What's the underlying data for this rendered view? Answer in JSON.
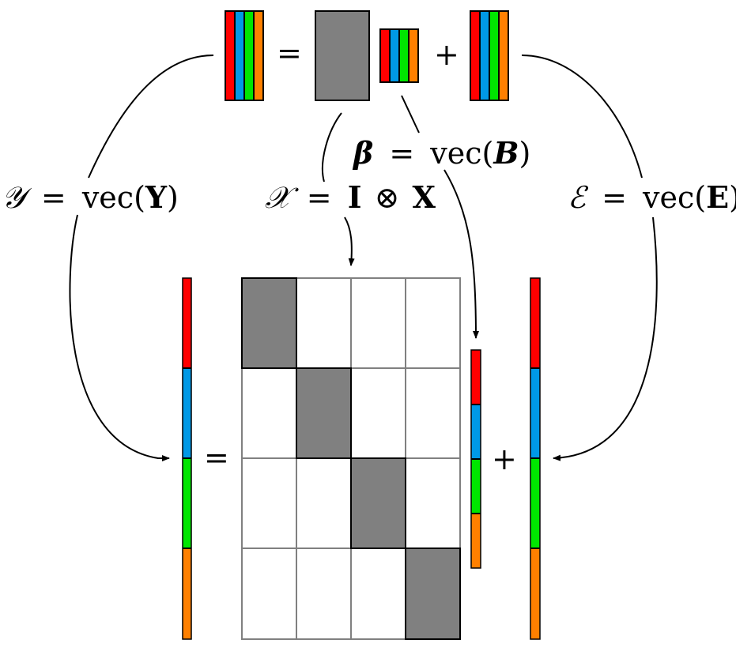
{
  "colors": {
    "red": "#ff0000",
    "blue": "#0099e6",
    "green": "#00e600",
    "orange": "#ff8000",
    "gray_block": "#808080",
    "grid_line": "#808080",
    "stroke": "#000000"
  },
  "equations": {
    "top_equals": "=",
    "top_plus": "+",
    "bottom_equals": "=",
    "bottom_plus": "+"
  },
  "labels": {
    "y_label": {
      "lhs": "𝒴",
      "eq": "=",
      "rhs": "vec(",
      "sym": "Y",
      "close": ")"
    },
    "x_label": {
      "lhs": "𝒳",
      "eq": "=",
      "sym1": "I",
      "otimes": "⊗",
      "sym2": "X"
    },
    "beta_label": {
      "lhs": "β",
      "eq": "=",
      "rhs": "vec(",
      "sym": "B",
      "close": ")"
    },
    "e_label": {
      "lhs": "ℰ",
      "eq": "=",
      "rhs": "vec(",
      "sym": "E",
      "close": ")"
    }
  }
}
